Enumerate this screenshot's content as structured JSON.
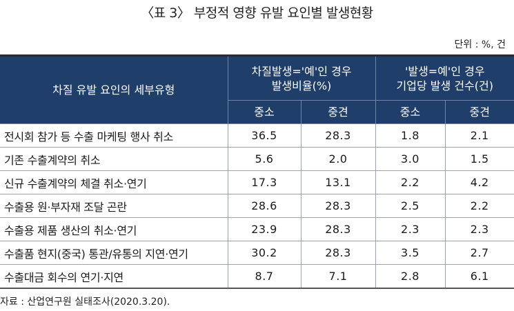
{
  "title": "〈표 3〉 부정적 영향 유발 요인별 발생현황",
  "unit": "단위 : %, 건",
  "header": {
    "row_label": "차질 유발 요인의 세부유형",
    "group1": "차질발생='예'인 경우\n발생비율(%)",
    "group2": "'발생=예'인 경우\n기업당 발생 건수(건)",
    "sub": [
      "중소",
      "중견",
      "중소",
      "중견"
    ]
  },
  "rows": [
    {
      "label": "전시회 참가 등 수출 마케팅 행사 취소",
      "v": [
        "36.5",
        "28.3",
        "1.8",
        "2.1"
      ]
    },
    {
      "label": "기존 수출계약의 취소",
      "v": [
        "5.6",
        "2.0",
        "3.0",
        "1.5"
      ]
    },
    {
      "label": "신규 수출계약의 체결 취소·연기",
      "v": [
        "17.3",
        "13.1",
        "2.2",
        "4.2"
      ]
    },
    {
      "label": "수출용 원·부자재 조달 곤란",
      "v": [
        "28.6",
        "28.3",
        "2.5",
        "2.2"
      ]
    },
    {
      "label": "수출용 제품 생산의 취소·연기",
      "v": [
        "23.9",
        "28.3",
        "2.3",
        "2.3"
      ]
    },
    {
      "label": "수출품 현지(중국) 통관/유통의 지연·연기",
      "v": [
        "30.2",
        "28.3",
        "3.5",
        "2.7"
      ]
    },
    {
      "label": "수출대금 회수의 연기·지연",
      "v": [
        "8.7",
        "7.1",
        "2.8",
        "6.1"
      ]
    }
  ],
  "source": "자료 : 산업연구원 실태조사(2020.3.20)."
}
